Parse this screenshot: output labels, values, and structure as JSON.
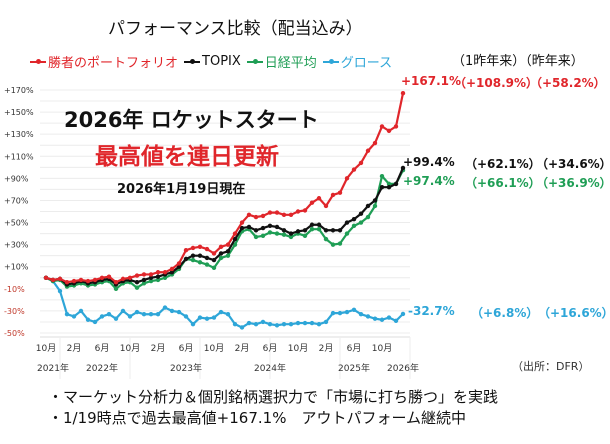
{
  "title": "パフォーマンス比較（配当込み）",
  "legend": [
    {
      "label": "勝者のポートフォリオ",
      "color": "#e0262b"
    },
    {
      "label": "TOPIX",
      "color": "#111111"
    },
    {
      "label": "日経平均",
      "color": "#1f9e55"
    },
    {
      "label": "グロース",
      "color": "#2ea6d8"
    }
  ],
  "column_header": "（1昨年来）（昨年来）",
  "results": [
    {
      "series": "勝者のポートフォリオ",
      "total": "+167.1%",
      "since_2y": "（+108.9%）",
      "since_1y": "（+58.2%）",
      "color": "#e0262b"
    },
    {
      "series": "TOPIX",
      "total": "+99.4%",
      "since_2y": "（+62.1%）",
      "since_1y": "（+34.6%）",
      "color": "#111111"
    },
    {
      "series": "日経平均",
      "total": "+97.4%",
      "since_2y": "（+66.1%）",
      "since_1y": "（+36.9%）",
      "color": "#1f9e55"
    },
    {
      "series": "グロース",
      "total": "-32.7%",
      "since_2y": "（+6.8%）",
      "since_1y": "（+16.6%）",
      "color": "#2ea6d8"
    }
  ],
  "overlay": {
    "headline": "2026年 ロケットスタート",
    "subheadline": "最高値を連日更新",
    "as_of": "2026年1月19日現在"
  },
  "source": "（出所：DFR）",
  "bullets": [
    "・マーケット分析力＆個別銘柄選択力で「市場に打ち勝つ」を実践",
    "・1/19時点で過去最高値+167.1%　アウトパフォーム継続中"
  ],
  "chart_data": {
    "type": "line",
    "title": "パフォーマンス比較（配当込み）",
    "xlabel": "",
    "ylabel": "",
    "x_start": "2021-10",
    "x_end": "2026-01",
    "ylim": [
      -50,
      170
    ],
    "yticks": [
      "+170%",
      "+150%",
      "+130%",
      "+110%",
      "+90%",
      "+70%",
      "+50%",
      "+30%",
      "+10%",
      "-10%",
      "-30%",
      "-50%"
    ],
    "ytick_values": [
      170,
      150,
      130,
      110,
      90,
      70,
      50,
      30,
      10,
      -10,
      -30,
      -50
    ],
    "xticks": [
      {
        "label": "10月",
        "index": 0
      },
      {
        "label": "2月",
        "index": 4
      },
      {
        "label": "6月",
        "index": 8
      },
      {
        "label": "10月",
        "index": 12
      },
      {
        "label": "2月",
        "index": 16
      },
      {
        "label": "6月",
        "index": 20
      },
      {
        "label": "10月",
        "index": 24
      },
      {
        "label": "2月",
        "index": 28
      },
      {
        "label": "6月",
        "index": 32
      },
      {
        "label": "10月",
        "index": 36
      },
      {
        "label": "2月",
        "index": 40
      },
      {
        "label": "6月",
        "index": 44
      },
      {
        "label": "10月",
        "index": 48
      }
    ],
    "year_labels": [
      {
        "label": "2021年",
        "index": 1
      },
      {
        "label": "2022年",
        "index": 8
      },
      {
        "label": "2023年",
        "index": 20
      },
      {
        "label": "2024年",
        "index": 32
      },
      {
        "label": "2025年",
        "index": 44
      },
      {
        "label": "2026年",
        "index": 51
      }
    ],
    "grid": true,
    "legend_position": "top",
    "series": [
      {
        "name": "勝者のポートフォリオ",
        "color": "#e0262b",
        "values": [
          0,
          -2,
          -1,
          -4,
          -3,
          -2,
          -3,
          -2,
          0,
          1,
          -4,
          -1,
          0,
          2,
          3,
          3,
          5,
          5,
          8,
          13,
          25,
          27,
          28,
          26,
          22,
          28,
          30,
          40,
          50,
          57,
          55,
          56,
          59,
          59,
          57,
          57,
          60,
          61,
          68,
          72,
          65,
          75,
          77,
          90,
          98,
          104,
          115,
          122,
          137,
          133,
          137,
          167.1
        ]
      },
      {
        "name": "TOPIX",
        "color": "#111111",
        "values": [
          0,
          -2,
          -1,
          -6,
          -5,
          -3,
          -5,
          -4,
          -2,
          -1,
          -6,
          -3,
          -2,
          -4,
          -2,
          0,
          1,
          3,
          5,
          10,
          17,
          20,
          20,
          18,
          16,
          22,
          24,
          35,
          45,
          46,
          43,
          45,
          47,
          46,
          43,
          40,
          42,
          43,
          48,
          48,
          43,
          43,
          43,
          50,
          53,
          58,
          65,
          70,
          82,
          82,
          85,
          99.4
        ]
      },
      {
        "name": "日経平均",
        "color": "#1f9e55",
        "values": [
          0,
          -3,
          -2,
          -8,
          -7,
          -5,
          -7,
          -6,
          -4,
          -3,
          -10,
          -5,
          -4,
          -9,
          -5,
          -3,
          -2,
          0,
          3,
          8,
          17,
          16,
          14,
          12,
          9,
          18,
          20,
          30,
          42,
          44,
          37,
          38,
          41,
          40,
          39,
          37,
          40,
          38,
          44,
          44,
          35,
          30,
          31,
          40,
          47,
          50,
          55,
          65,
          92,
          85,
          85,
          97.4
        ]
      },
      {
        "name": "グロース",
        "color": "#2ea6d8",
        "values": [
          0,
          -3,
          -12,
          -33,
          -35,
          -30,
          -38,
          -40,
          -35,
          -33,
          -37,
          -30,
          -35,
          -31,
          -33,
          -33,
          -33,
          -27,
          -30,
          -31,
          -35,
          -42,
          -36,
          -37,
          -36,
          -31,
          -33,
          -42,
          -45,
          -41,
          -42,
          -40,
          -42,
          -43,
          -42,
          -42,
          -41,
          -41,
          -41,
          -42,
          -40,
          -32,
          -32,
          -31,
          -29,
          -33,
          -35,
          -37,
          -38,
          -36,
          -39,
          -32.7
        ]
      }
    ]
  }
}
